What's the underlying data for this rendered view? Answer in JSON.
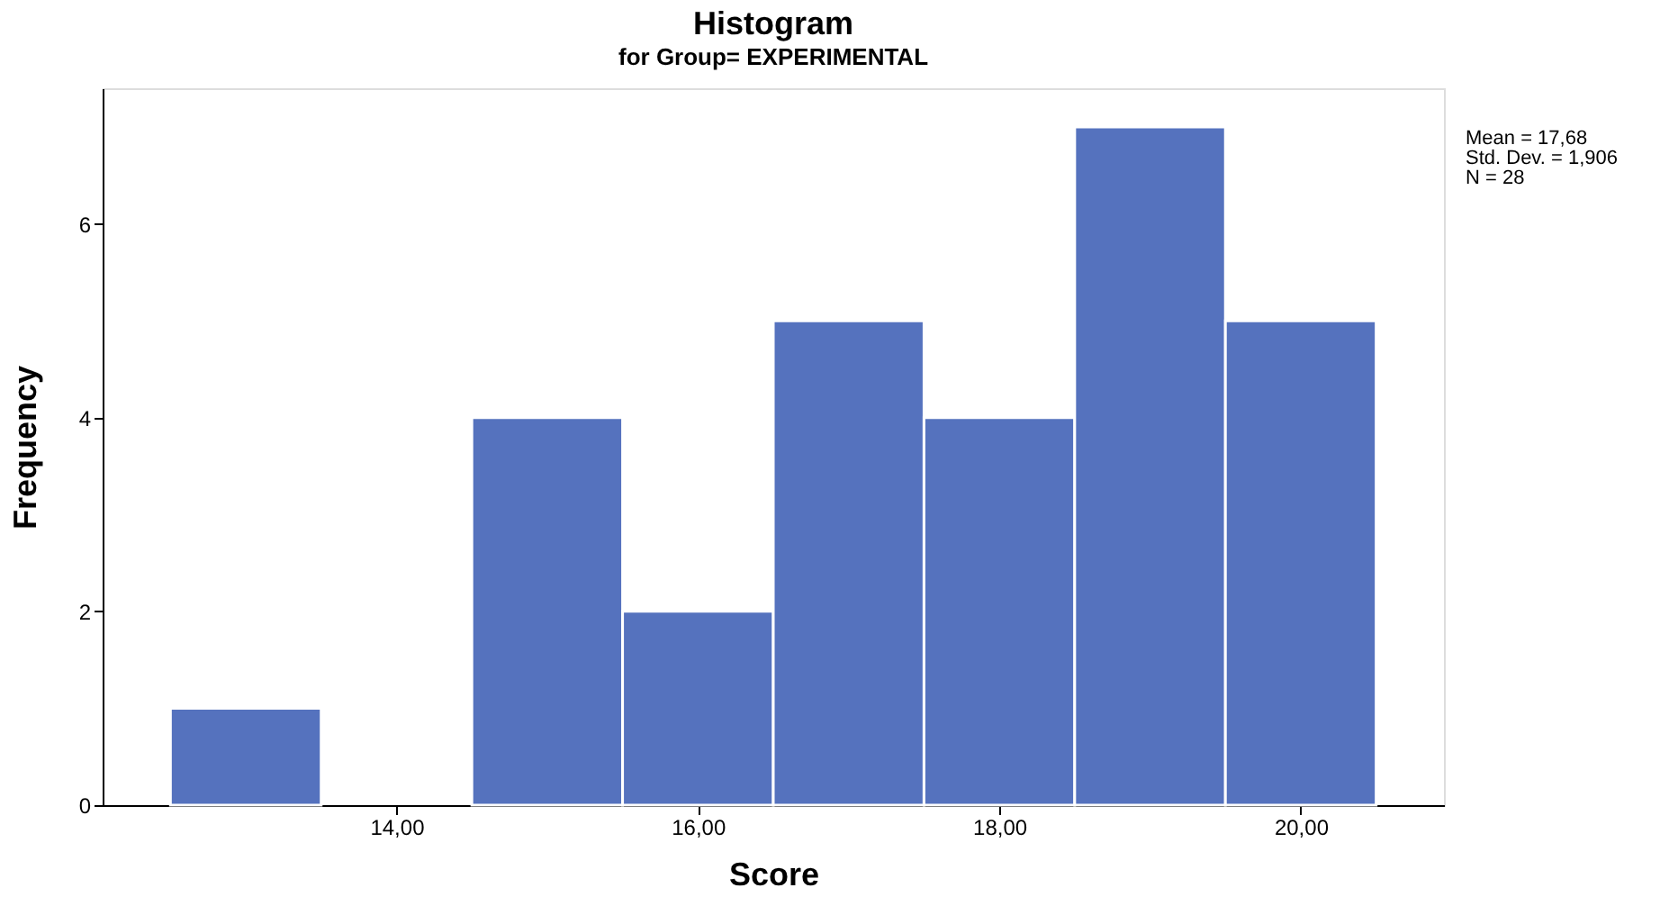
{
  "chart_data": {
    "type": "histogram",
    "title": "Histogram",
    "subtitle": "for Group= EXPERIMENTAL",
    "xlabel": "Score",
    "ylabel": "Frequency",
    "bins": [
      12.5,
      13.5,
      14.5,
      15.5,
      16.5,
      17.5,
      18.5,
      19.5,
      20.5
    ],
    "values": [
      1,
      0,
      4,
      2,
      5,
      4,
      7,
      5
    ],
    "color": "#5572be",
    "xlim": [
      12.05,
      20.95
    ],
    "xticks": [
      {
        "value": 14,
        "label": "14,00"
      },
      {
        "value": 16,
        "label": "16,00"
      },
      {
        "value": 18,
        "label": "18,00"
      },
      {
        "value": 20,
        "label": "20,00"
      }
    ],
    "ylim": [
      0,
      7.4
    ],
    "yticks": [
      0,
      2,
      4,
      6
    ],
    "grid": false,
    "annotations": [
      "Mean = 17,68",
      "Std. Dev. = 1,906",
      "N = 28"
    ]
  }
}
